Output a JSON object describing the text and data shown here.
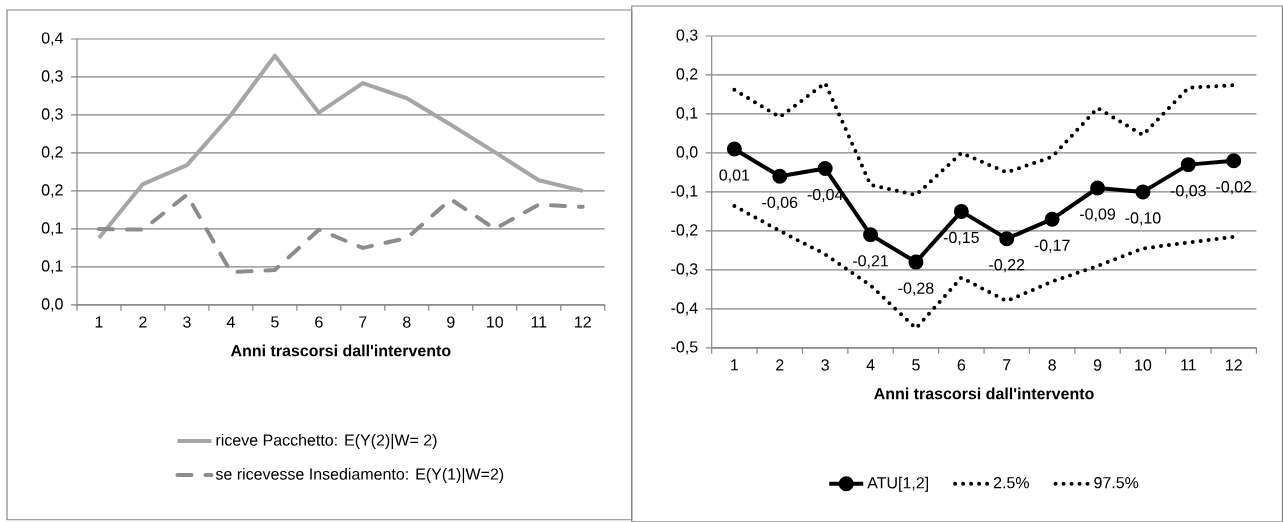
{
  "chart_data": [
    {
      "type": "line",
      "xlabel": "Anni trascorsi dall'intervento",
      "categories": [
        "1",
        "2",
        "3",
        "4",
        "5",
        "6",
        "7",
        "8",
        "9",
        "10",
        "11",
        "12"
      ],
      "ylim": [
        0,
        0.35
      ],
      "yticks": [
        {
          "value": 0,
          "label": "0,0"
        },
        {
          "value": 0.05,
          "label": "0,1"
        },
        {
          "value": 0.1,
          "label": "0,1"
        },
        {
          "value": 0.15,
          "label": "0,2"
        },
        {
          "value": 0.2,
          "label": "0,2"
        },
        {
          "value": 0.25,
          "label": "0,3"
        },
        {
          "value": 0.3,
          "label": "0,3"
        },
        {
          "value": 0.35,
          "label": "0,4"
        }
      ],
      "grid": "y",
      "legend": "bottom",
      "series": [
        {
          "name": "riceve Pacchetto: E(Y(2)|W= 2)",
          "color": "#a6a6a6",
          "line_style": "solid",
          "marker": "none",
          "values": [
            0.088,
            0.159,
            0.184,
            0.25,
            0.328,
            0.253,
            0.292,
            0.272,
            0.237,
            0.201,
            0.164,
            0.15
          ]
        },
        {
          "name": "se ricevesse Insediamento: E(Y(1)|W=2)",
          "color": "#8c8c8c",
          "line_style": "dashed",
          "marker": "none",
          "values": [
            0.1,
            0.099,
            0.145,
            0.043,
            0.046,
            0.099,
            0.075,
            0.088,
            0.139,
            0.1,
            0.132,
            0.129
          ]
        }
      ]
    },
    {
      "type": "line",
      "xlabel": "Anni trascorsi dall'intervento",
      "categories": [
        "1",
        "2",
        "3",
        "4",
        "5",
        "6",
        "7",
        "8",
        "9",
        "10",
        "11",
        "12"
      ],
      "ylim": [
        -0.5,
        0.3
      ],
      "yticks": [
        {
          "value": -0.5,
          "label": "-0,5"
        },
        {
          "value": -0.4,
          "label": "-0,4"
        },
        {
          "value": -0.3,
          "label": "-0,3"
        },
        {
          "value": -0.2,
          "label": "-0,2"
        },
        {
          "value": -0.1,
          "label": "-0,1"
        },
        {
          "value": 0,
          "label": "0,0"
        },
        {
          "value": 0.1,
          "label": "0,1"
        },
        {
          "value": 0.2,
          "label": "0,2"
        },
        {
          "value": 0.3,
          "label": "0,3"
        }
      ],
      "grid": "y",
      "legend": "bottom",
      "series": [
        {
          "name": "ATU[1,2]",
          "color": "#000000",
          "line_style": "solid",
          "marker": "circle",
          "values": [
            0.01,
            -0.06,
            -0.04,
            -0.21,
            -0.28,
            -0.15,
            -0.22,
            -0.17,
            -0.09,
            -0.1,
            -0.03,
            -0.02
          ],
          "value_labels": [
            "0,01",
            "-0,06",
            "-0,04",
            "-0,21",
            "-0,28",
            "-0,15",
            "-0,22",
            "-0,17",
            "-0,09",
            "-0,10",
            "-0,03",
            "-0,02"
          ]
        },
        {
          "name": "2.5%",
          "color": "#000000",
          "line_style": "dotted",
          "marker": "none",
          "values": [
            -0.136,
            -0.2,
            -0.26,
            -0.34,
            -0.45,
            -0.32,
            -0.38,
            -0.33,
            -0.29,
            -0.245,
            -0.23,
            -0.215
          ]
        },
        {
          "name": "97.5%",
          "color": "#000000",
          "line_style": "dotted",
          "marker": "none",
          "values": [
            0.162,
            0.092,
            0.179,
            -0.082,
            -0.108,
            0.0,
            -0.05,
            -0.01,
            0.115,
            0.046,
            0.167,
            0.174
          ]
        }
      ]
    }
  ]
}
